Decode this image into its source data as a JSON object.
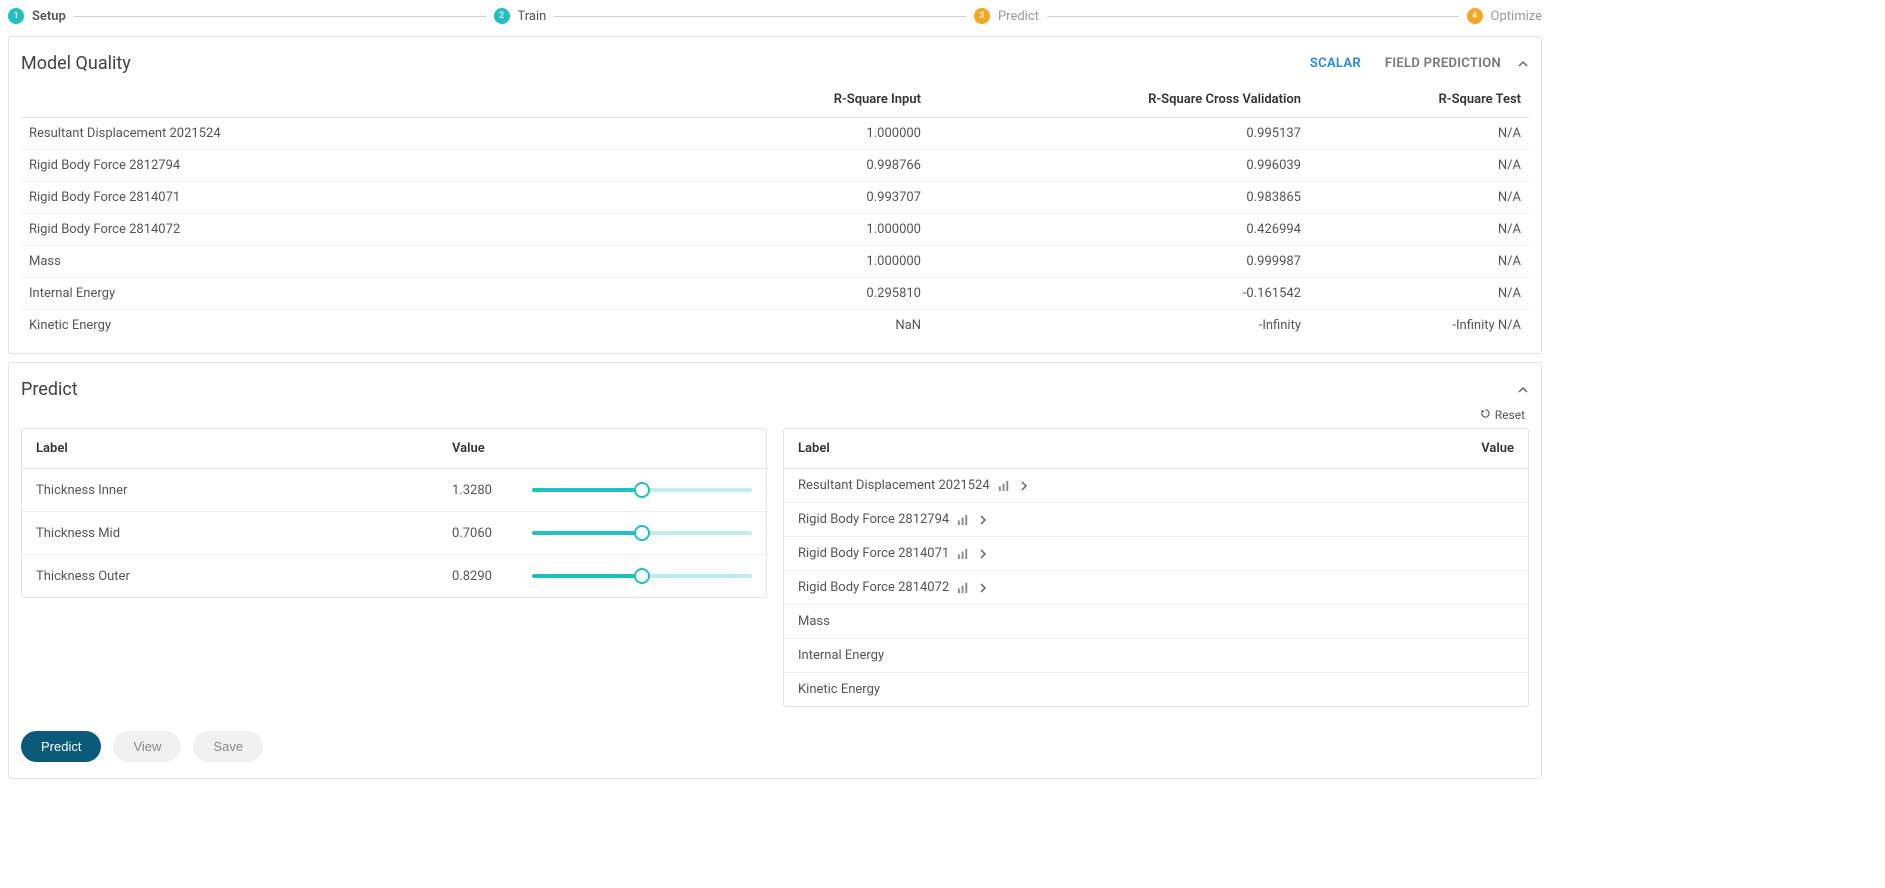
{
  "colors": {
    "step_active": "#1fbfc4",
    "step_pending": "#f5a623",
    "accent": "#1e88e5",
    "slider_track": "#bfeef0",
    "slider_fill": "#1fbfc4",
    "primary_btn": "#0c5a7a"
  },
  "stepper": {
    "steps": [
      {
        "num": "1",
        "label": "Setup",
        "state": "active"
      },
      {
        "num": "2",
        "label": "Train",
        "state": "active"
      },
      {
        "num": "3",
        "label": "Predict",
        "state": "pending"
      },
      {
        "num": "4",
        "label": "Optimize",
        "state": "pending"
      }
    ]
  },
  "quality": {
    "title": "Model Quality",
    "tabs": {
      "scalar": "SCALAR",
      "field": "FIELD PREDICTION"
    },
    "headers": {
      "name": "",
      "r2_input": "R-Square Input",
      "r2_cv": "R-Square Cross Validation",
      "r2_test": "R-Square Test"
    },
    "rows": [
      {
        "name": "Resultant Displacement 2021524",
        "r2_input": "1.000000",
        "r2_cv": "0.995137",
        "r2_test": "N/A"
      },
      {
        "name": "Rigid Body Force 2812794",
        "r2_input": "0.998766",
        "r2_cv": "0.996039",
        "r2_test": "N/A"
      },
      {
        "name": "Rigid Body Force 2814071",
        "r2_input": "0.993707",
        "r2_cv": "0.983865",
        "r2_test": "N/A"
      },
      {
        "name": "Rigid Body Force 2814072",
        "r2_input": "1.000000",
        "r2_cv": "0.426994",
        "r2_test": "N/A"
      },
      {
        "name": "Mass",
        "r2_input": "1.000000",
        "r2_cv": "0.999987",
        "r2_test": "N/A"
      },
      {
        "name": "Internal Energy",
        "r2_input": "0.295810",
        "r2_cv": "-0.161542",
        "r2_test": "N/A"
      },
      {
        "name": "Kinetic Energy",
        "r2_input": "NaN",
        "r2_cv": "-Infinity",
        "r2_test": "-Infinity N/A"
      }
    ]
  },
  "predict": {
    "title": "Predict",
    "reset_label": "Reset",
    "headers": {
      "label": "Label",
      "value": "Value"
    },
    "inputs": [
      {
        "label": "Thickness Inner",
        "value": "1.3280",
        "pct": 50
      },
      {
        "label": "Thickness Mid",
        "value": "0.7060",
        "pct": 50
      },
      {
        "label": "Thickness Outer",
        "value": "0.8290",
        "pct": 50
      }
    ],
    "outputs": [
      {
        "label": "Resultant Displacement 2021524",
        "has_icons": true
      },
      {
        "label": "Rigid Body Force 2812794",
        "has_icons": true
      },
      {
        "label": "Rigid Body Force 2814071",
        "has_icons": true
      },
      {
        "label": "Rigid Body Force 2814072",
        "has_icons": true
      },
      {
        "label": "Mass",
        "has_icons": false
      },
      {
        "label": "Internal Energy",
        "has_icons": false
      },
      {
        "label": "Kinetic Energy",
        "has_icons": false
      }
    ],
    "buttons": {
      "predict": "Predict",
      "view": "View",
      "save": "Save"
    }
  }
}
